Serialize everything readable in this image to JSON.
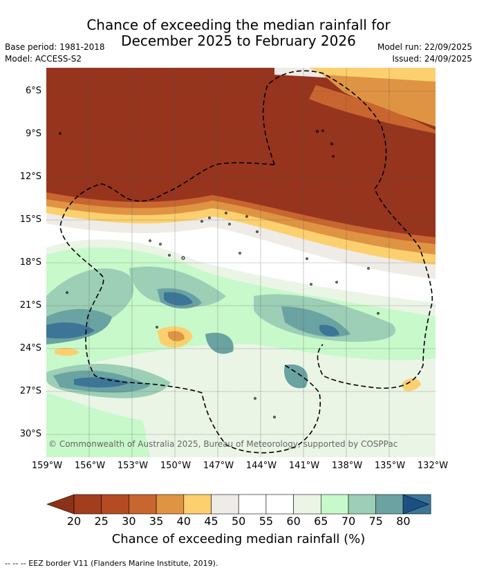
{
  "header": {
    "title_line1": "Chance of exceeding the median rainfall for",
    "title_line2": "December 2025 to February 2026",
    "base_period": "Base period: 1981-2018",
    "model": "Model: ACCESS-S2",
    "model_run": "Model run: 22/09/2025",
    "issued": "Issued: 24/09/2025"
  },
  "map": {
    "copyright": "© Commonwealth of Australia 2025, Bureau of Meteorology, supported by COSPPac",
    "lat_labels": [
      "6°S",
      "9°S",
      "12°S",
      "15°S",
      "18°S",
      "21°S",
      "24°S",
      "27°S",
      "30°S"
    ],
    "lon_labels": [
      "159°W",
      "156°W",
      "153°W",
      "150°W",
      "147°W",
      "144°W",
      "141°W",
      "138°W",
      "135°W",
      "132°W"
    ]
  },
  "colorbar": {
    "ticks": [
      "20",
      "25",
      "30",
      "35",
      "40",
      "45",
      "50",
      "55",
      "60",
      "65",
      "70",
      "75",
      "80"
    ],
    "colors": [
      "#a23d1e",
      "#b44b22",
      "#c9652f",
      "#df9444",
      "#fcd06e",
      "#efebe6",
      "#ffffff",
      "#ffffff",
      "#eaf5e6",
      "#c8f9ca",
      "#9ccfb6",
      "#6aa3a1",
      "#3d7597"
    ],
    "low_extend_color": "#8c3219",
    "high_extend_color": "#1d4f86",
    "title": "Chance of exceeding median rainfall (%)"
  },
  "footnote": "--  --  -- EEZ border V11 (Flanders Marine Institute, 2019)."
}
